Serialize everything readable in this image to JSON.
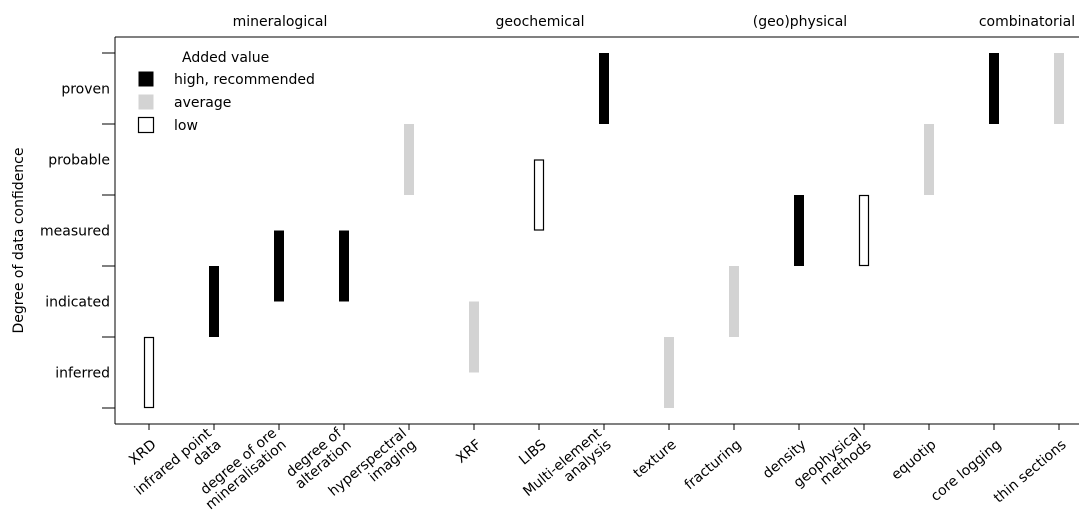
{
  "chart_data": {
    "type": "range-bar",
    "ylabel": "Degree of data confidence",
    "y_categories": [
      "inferred",
      "indicated",
      "measured",
      "probable",
      "proven"
    ],
    "groups": [
      "mineralogical",
      "geochemical",
      "(geo)physical",
      "combinatorial"
    ],
    "categories": [
      [
        "XRD"
      ],
      [
        "infrared point",
        "data"
      ],
      [
        "degree of ore",
        "mineralisation"
      ],
      [
        "degree of",
        "alteration"
      ],
      [
        "hyperspectral",
        "imaging"
      ],
      [
        "XRF"
      ],
      [
        "LIBS"
      ],
      [
        "Multi-element",
        "analysis"
      ],
      [
        "texture"
      ],
      [
        "fracturing"
      ],
      [
        "density"
      ],
      [
        "geophysical",
        "methods"
      ],
      [
        "equotip"
      ],
      [
        "core logging"
      ],
      [
        "thin sections"
      ]
    ],
    "bars": [
      {
        "from": 0.0,
        "to": 1.0,
        "value": "low"
      },
      {
        "from": 1.0,
        "to": 2.0,
        "value": "high"
      },
      {
        "from": 1.5,
        "to": 2.5,
        "value": "high"
      },
      {
        "from": 1.5,
        "to": 2.5,
        "value": "high"
      },
      {
        "from": 3.0,
        "to": 4.0,
        "value": "average"
      },
      {
        "from": 0.5,
        "to": 1.5,
        "value": "average"
      },
      {
        "from": 2.5,
        "to": 3.5,
        "value": "low"
      },
      {
        "from": 4.0,
        "to": 5.0,
        "value": "high"
      },
      {
        "from": 0.0,
        "to": 1.0,
        "value": "average"
      },
      {
        "from": 1.0,
        "to": 2.0,
        "value": "average"
      },
      {
        "from": 2.0,
        "to": 3.0,
        "value": "high"
      },
      {
        "from": 2.0,
        "to": 3.0,
        "value": "low"
      },
      {
        "from": 3.0,
        "to": 4.0,
        "value": "average"
      },
      {
        "from": 4.0,
        "to": 5.0,
        "value": "high"
      },
      {
        "from": 4.0,
        "to": 5.0,
        "value": "average"
      }
    ],
    "ylim": [
      0,
      5
    ],
    "legend": {
      "title": "Added value",
      "placement": "top-left",
      "entries": [
        {
          "key": "high",
          "label": "high, recommended",
          "fill": "#000000",
          "stroke": "#000000"
        },
        {
          "key": "average",
          "label": "average",
          "fill": "#d3d3d3",
          "stroke": "#d3d3d3"
        },
        {
          "key": "low",
          "label": "low",
          "fill": "#ffffff",
          "stroke": "#000000"
        }
      ]
    },
    "grid": false
  }
}
